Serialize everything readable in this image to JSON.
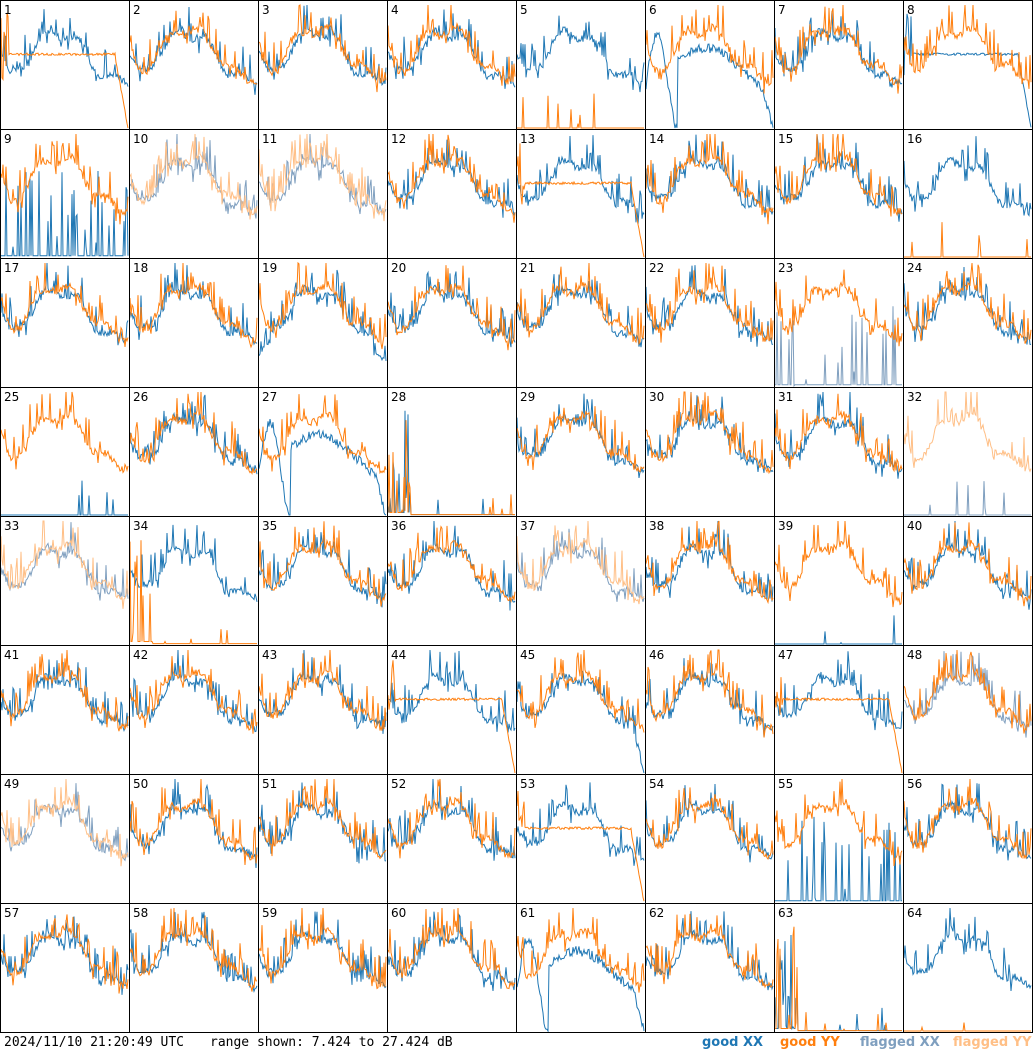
{
  "footer": {
    "timestamp": "2024/11/10 21:20:49 UTC",
    "range_text": "range shown: 7.424 to 27.424 dB"
  },
  "legend": {
    "good_xx": "good XX",
    "good_yy": "good YY",
    "flagged_xx": "flagged XX",
    "flagged_yy": "flagged YY"
  },
  "colors": {
    "good_xx": "#1f77b4",
    "good_yy": "#ff7f0e",
    "flagged_xx": "#7f9fbf",
    "flagged_yy": "#ffbf86"
  },
  "chart_data": {
    "type": "line",
    "layout": "8x8 grid of small multiples",
    "panel_labels": [
      "1",
      "2",
      "3",
      "4",
      "5",
      "6",
      "7",
      "8",
      "9",
      "10",
      "11",
      "12",
      "13",
      "14",
      "15",
      "16",
      "17",
      "18",
      "19",
      "20",
      "21",
      "22",
      "23",
      "24",
      "25",
      "26",
      "27",
      "28",
      "29",
      "30",
      "31",
      "32",
      "33",
      "34",
      "35",
      "36",
      "37",
      "38",
      "39",
      "40",
      "41",
      "42",
      "43",
      "44",
      "45",
      "46",
      "47",
      "48",
      "49",
      "50",
      "51",
      "52",
      "53",
      "54",
      "55",
      "56",
      "57",
      "58",
      "59",
      "60",
      "61",
      "62",
      "63",
      "64"
    ],
    "ylim": [
      7.424,
      27.424
    ],
    "y_unit": "dB",
    "series": [
      "good XX",
      "good YY",
      "flagged XX",
      "flagged YY"
    ],
    "panel_styles": {
      "xx": [
        "normal",
        "normal",
        "normal",
        "normal",
        "normal",
        "dip",
        "normal",
        "flat",
        "spiky",
        "flagged",
        "flagged",
        "normal",
        "normal",
        "normal",
        "normal",
        "normal",
        "normal",
        "normal",
        "droop",
        "normal",
        "normal",
        "normal",
        "flagged_spiky",
        "normal",
        "sparse",
        "normal",
        "dip",
        "dead",
        "normal",
        "normal",
        "normal",
        "flagged_sparse",
        "flagged",
        "normal",
        "normal",
        "normal",
        "flagged",
        "normal",
        "sparse",
        "normal",
        "normal",
        "normal",
        "normal",
        "normal",
        "rolloff",
        "normal",
        "normal",
        "flagged",
        "flagged",
        "normal",
        "normal",
        "normal",
        "normal",
        "normal",
        "spiky",
        "normal",
        "normal",
        "normal",
        "normal",
        "normal",
        "dip",
        "normal",
        "dead",
        "normal"
      ],
      "yy": [
        "flat",
        "normal",
        "normal",
        "normal",
        "sparse",
        "normal",
        "normal",
        "normal",
        "normal",
        "flagged",
        "flagged",
        "normal",
        "flat",
        "normal",
        "normal",
        "sparse",
        "normal",
        "normal",
        "normal",
        "normal",
        "normal",
        "normal",
        "normal",
        "normal",
        "normal",
        "normal",
        "normal",
        "dead",
        "normal",
        "normal",
        "normal",
        "flagged",
        "flagged",
        "dead",
        "normal",
        "normal",
        "flagged",
        "normal",
        "normal",
        "normal",
        "normal",
        "normal",
        "normal",
        "flat",
        "normal",
        "normal",
        "flat",
        "normal",
        "flagged",
        "normal",
        "normal",
        "normal",
        "flat",
        "normal",
        "normal",
        "normal",
        "normal",
        "normal",
        "normal",
        "normal",
        "normal",
        "normal",
        "dead",
        "sparse"
      ]
    }
  }
}
